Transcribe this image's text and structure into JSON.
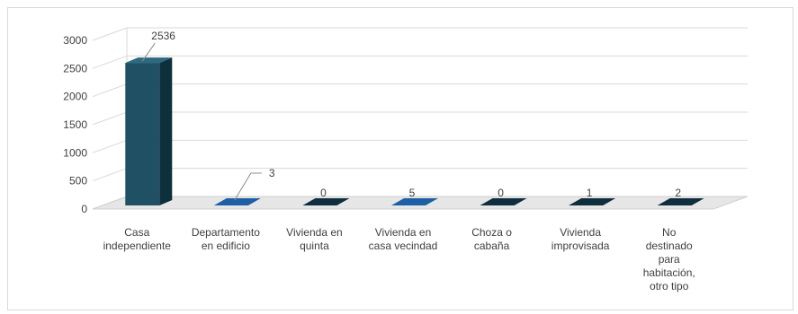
{
  "chart_data": {
    "type": "bar",
    "categories": [
      [
        "Casa",
        "independiente"
      ],
      [
        "Departamento",
        "en edificio"
      ],
      [
        "Vivienda en",
        "quinta"
      ],
      [
        "Vivienda en",
        "casa vecindad"
      ],
      [
        "Choza o",
        "cabaña"
      ],
      [
        "Vivienda",
        "improvisada"
      ],
      [
        "No",
        "destinado",
        "para",
        "habitación,",
        "otro tipo"
      ]
    ],
    "values": [
      2536,
      3,
      0,
      5,
      0,
      1,
      2
    ],
    "data_labels": [
      "2536",
      "3",
      "0",
      "5",
      "0",
      "1",
      "2"
    ],
    "yticks": [
      "0",
      "500",
      "1000",
      "1500",
      "2000",
      "2500",
      "3000"
    ],
    "ylim": [
      0,
      3000
    ],
    "grid": true,
    "legend": "none",
    "colors": {
      "casa_front": "#1f5063",
      "casa_side": "#0e2f3c",
      "casa_top": "#2d6a80",
      "blue_front": "#1f5fa6",
      "dark_front": "#0f2e3e",
      "grid": "#d9d9d9",
      "floor": "#e6e6e6",
      "text": "#404040"
    }
  }
}
